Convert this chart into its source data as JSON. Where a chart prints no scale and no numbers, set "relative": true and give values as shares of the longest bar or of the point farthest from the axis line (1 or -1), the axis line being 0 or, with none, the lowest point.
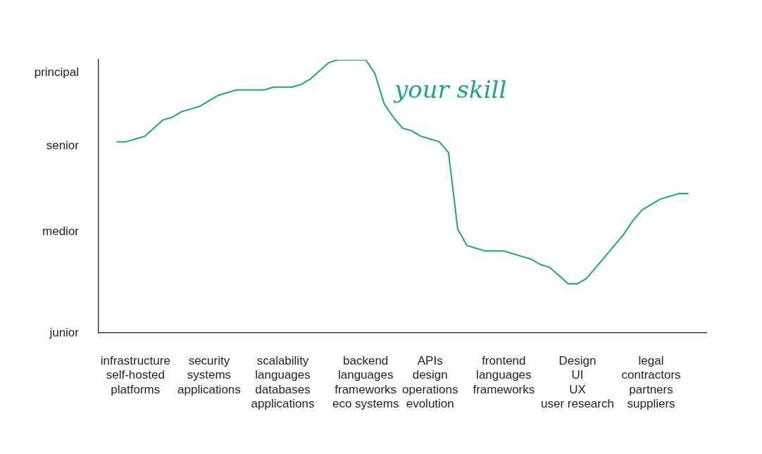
{
  "chart_data": {
    "type": "line",
    "relative": true,
    "legend": false,
    "grid": false,
    "marker": "none",
    "line_style": "solid",
    "categories": [
      null,
      null,
      null,
      null,
      "infrastructure\nself-hosted\nplatforms",
      null,
      null,
      null,
      null,
      null,
      null,
      null,
      "security\nsystems\napplications",
      null,
      null,
      null,
      null,
      null,
      null,
      null,
      "scalability\nlanguages\ndatabases\napplications",
      null,
      null,
      null,
      null,
      null,
      null,
      null,
      null,
      "backend\nlanguages\nframeworks\neco systems",
      null,
      null,
      null,
      null,
      null,
      null,
      "APIs\ndesign\noperations\nevolution",
      null,
      null,
      null,
      null,
      null,
      null,
      null,
      "frontend\nlanguages\nframeworks",
      null,
      null,
      null,
      null,
      null,
      null,
      null,
      "Design\nUI\nUX\nuser research",
      null,
      null,
      null,
      null,
      null,
      null,
      null,
      "legal\ncontractors\npartners\nsuppliers",
      null,
      null,
      null,
      null,
      null,
      null
    ],
    "annotations": [
      "junior",
      "medior",
      "senior",
      "principal"
    ],
    "series": [
      {
        "name": "your skill",
        "color": "#1aa584",
        "values": [
          null,
          null,
          0.7,
          0.7,
          0.71,
          0.72,
          0.75,
          0.78,
          0.79,
          0.81,
          0.82,
          0.83,
          0.85,
          0.87,
          0.88,
          0.89,
          0.89,
          0.89,
          0.89,
          0.9,
          0.9,
          0.9,
          0.91,
          0.93,
          0.96,
          0.99,
          1,
          1,
          1,
          1,
          0.95,
          0.84,
          0.79,
          0.75,
          0.74,
          0.72,
          0.71,
          0.7,
          0.66,
          0.38,
          0.32,
          0.31,
          0.3,
          0.3,
          0.3,
          0.29,
          0.28,
          0.27,
          0.25,
          0.24,
          0.21,
          0.18,
          0.18,
          0.2,
          0.24,
          0.28,
          0.32,
          0.36,
          0.41,
          0.45,
          0.47,
          0.49,
          0.5,
          0.51,
          0.51,
          null,
          null
        ]
      }
    ]
  }
}
